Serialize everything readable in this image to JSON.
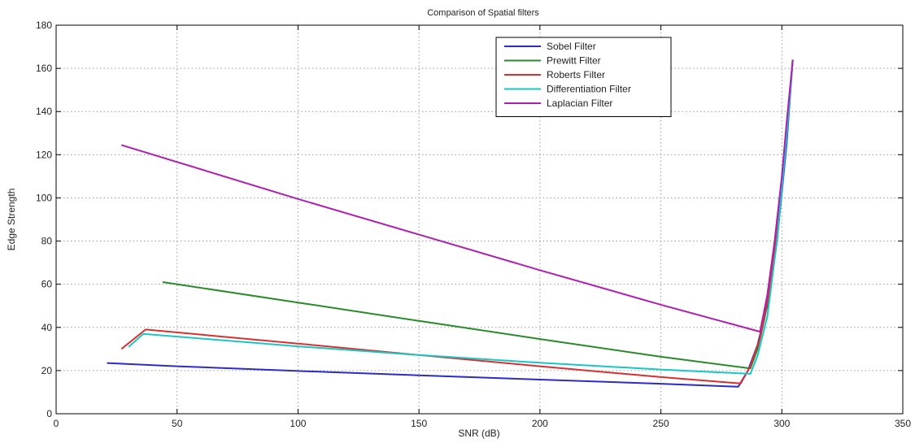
{
  "chart_data": {
    "type": "line",
    "title": "Comparison of Spatial filters",
    "xlabel": "SNR (dB)",
    "ylabel": "Edge Strength",
    "xlim": [
      0,
      350
    ],
    "ylim": [
      0,
      180
    ],
    "xticks": [
      0,
      50,
      100,
      150,
      200,
      250,
      300,
      350
    ],
    "yticks": [
      0,
      20,
      40,
      60,
      80,
      100,
      120,
      140,
      160,
      180
    ],
    "grid": true,
    "legend_position": "top-right",
    "series": [
      {
        "name": "Sobel Filter",
        "color": "#2b2bc8",
        "x": [
          21,
          50,
          100,
          150,
          200,
          250,
          282,
          286,
          290,
          294,
          298,
          302,
          304.5
        ],
        "y": [
          23.5,
          22,
          19.8,
          17.8,
          15.8,
          13.9,
          12.5,
          20,
          32,
          50,
          80,
          125,
          164
        ]
      },
      {
        "name": "Prewitt Filter",
        "color": "#2a8a2a",
        "x": [
          44,
          100,
          150,
          200,
          250,
          287,
          290,
          293,
          296,
          300,
          304.5
        ],
        "y": [
          61,
          51.5,
          43,
          34.6,
          26.4,
          21,
          30,
          45,
          65,
          105,
          164
        ]
      },
      {
        "name": "Roberts Filter",
        "color": "#d83030",
        "x": [
          27,
          37,
          100,
          150,
          200,
          250,
          283,
          287,
          291,
          295,
          299,
          302,
          304.5
        ],
        "y": [
          30,
          39,
          32.5,
          27.2,
          22,
          17,
          14,
          22,
          35,
          58,
          95,
          130,
          164
        ]
      },
      {
        "name": "Differentiation Filter",
        "color": "#19c6c6",
        "x": [
          30,
          36,
          100,
          150,
          200,
          250,
          287,
          290,
          294,
          298,
          302,
          304.5
        ],
        "y": [
          31,
          37,
          31.2,
          27.2,
          23.6,
          20.5,
          18.5,
          27,
          45,
          80,
          128,
          164
        ]
      },
      {
        "name": "Laplacian Filter",
        "color": "#b01eb0",
        "x": [
          27,
          100,
          150,
          200,
          250,
          291,
          294,
          297,
          300,
          302,
          304.5
        ],
        "y": [
          124.5,
          99.5,
          83,
          66.5,
          50.5,
          38,
          55,
          80,
          110,
          135,
          164
        ]
      }
    ]
  }
}
